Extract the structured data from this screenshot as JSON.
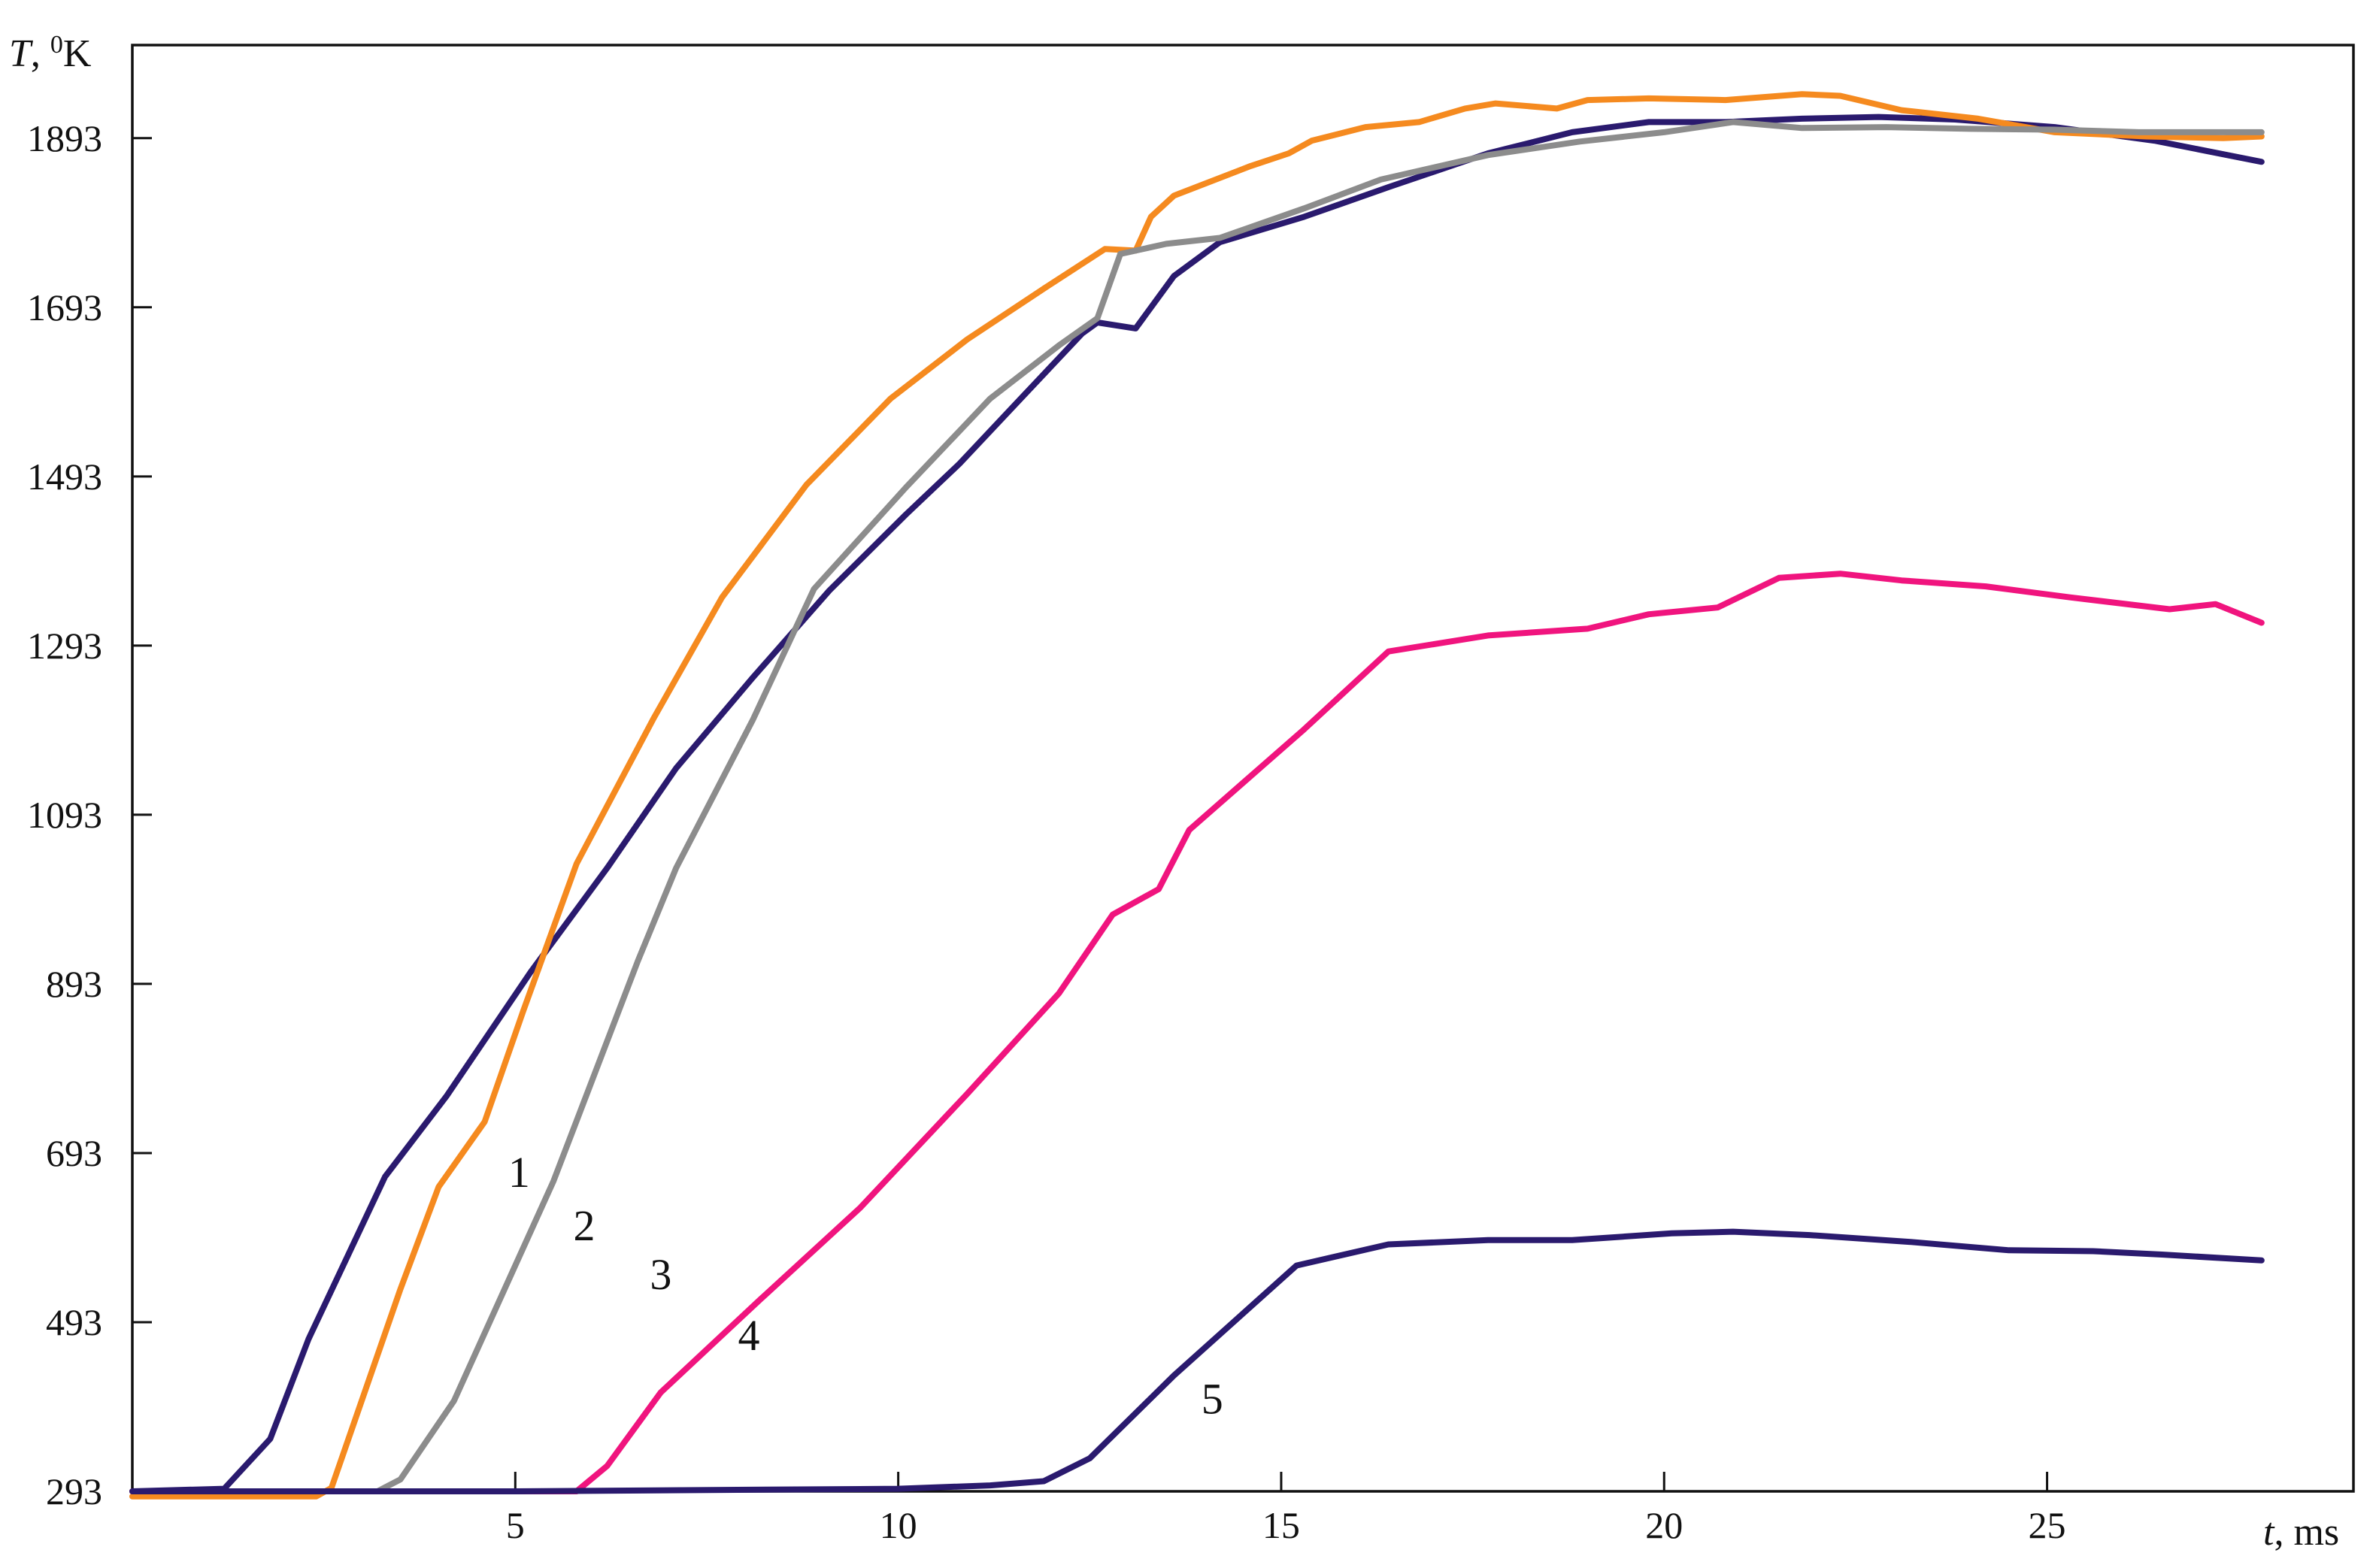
{
  "chart_data": {
    "type": "line",
    "ylabel": {
      "var": "T",
      "sep": ", ",
      "sup": "0",
      "unit": "K"
    },
    "xlabel": {
      "var": "t",
      "unit": ", ms"
    },
    "xlim": [
      0,
      29
    ],
    "ylim": [
      293,
      2003
    ],
    "x_ticks": [
      5,
      10,
      15,
      20,
      25
    ],
    "x_tick_labels": [
      "5",
      "10",
      "15",
      "20",
      "25"
    ],
    "y_ticks": [
      293,
      493,
      693,
      893,
      1093,
      1293,
      1493,
      1693,
      1893
    ],
    "y_tick_labels": [
      "293",
      "493",
      "693",
      "893",
      "1093",
      "1293",
      "1493",
      "1693",
      "1893"
    ],
    "grid": false,
    "legend": "none",
    "series": [
      {
        "label": "1",
        "color": "#2a1a6e",
        "points": [
          [
            0,
            293
          ],
          [
            1.2,
            296
          ],
          [
            1.8,
            355
          ],
          [
            2.3,
            473
          ],
          [
            3.3,
            665
          ],
          [
            4.1,
            760
          ],
          [
            5.2,
            907
          ],
          [
            6.2,
            1030
          ],
          [
            7.1,
            1148
          ],
          [
            8.1,
            1255
          ],
          [
            9.1,
            1358
          ],
          [
            10.1,
            1448
          ],
          [
            10.8,
            1508
          ],
          [
            11.6,
            1585
          ],
          [
            12.4,
            1662
          ],
          [
            12.6,
            1675
          ],
          [
            13.1,
            1668
          ],
          [
            13.6,
            1730
          ],
          [
            14.2,
            1770
          ],
          [
            15.3,
            1800
          ],
          [
            16.4,
            1835
          ],
          [
            17.7,
            1875
          ],
          [
            18.8,
            1900
          ],
          [
            19.8,
            1912
          ],
          [
            20.8,
            1912
          ],
          [
            21.8,
            1916
          ],
          [
            22.8,
            1918
          ],
          [
            23.8,
            1915
          ],
          [
            25.1,
            1906
          ],
          [
            26.4,
            1890
          ],
          [
            27.8,
            1865
          ]
        ]
      },
      {
        "label": "2",
        "color": "#f58a1f",
        "points": [
          [
            0,
            287
          ],
          [
            2.4,
            287
          ],
          [
            2.6,
            297
          ],
          [
            3.5,
            532
          ],
          [
            4.0,
            653
          ],
          [
            4.6,
            730
          ],
          [
            5.1,
            860
          ],
          [
            5.8,
            1035
          ],
          [
            6.8,
            1206
          ],
          [
            7.7,
            1350
          ],
          [
            8.8,
            1483
          ],
          [
            9.9,
            1585
          ],
          [
            10.9,
            1655
          ],
          [
            11.9,
            1715
          ],
          [
            12.7,
            1762
          ],
          [
            13.1,
            1760
          ],
          [
            13.3,
            1800
          ],
          [
            13.6,
            1825
          ],
          [
            14.6,
            1860
          ],
          [
            15.1,
            1875
          ],
          [
            15.4,
            1890
          ],
          [
            16.1,
            1906
          ],
          [
            16.8,
            1912
          ],
          [
            17.4,
            1928
          ],
          [
            17.8,
            1934
          ],
          [
            18.6,
            1928
          ],
          [
            19.0,
            1938
          ],
          [
            19.8,
            1940
          ],
          [
            20.8,
            1938
          ],
          [
            21.8,
            1945
          ],
          [
            22.3,
            1943
          ],
          [
            23.1,
            1926
          ],
          [
            24.1,
            1916
          ],
          [
            25.1,
            1900
          ],
          [
            26.3,
            1895
          ],
          [
            27.3,
            1893
          ],
          [
            27.8,
            1895
          ]
        ]
      },
      {
        "label": "3",
        "color": "#8c8c8c",
        "points": [
          [
            0,
            293
          ],
          [
            3.2,
            293
          ],
          [
            3.5,
            307
          ],
          [
            4.2,
            400
          ],
          [
            5.5,
            660
          ],
          [
            6.6,
            920
          ],
          [
            7.1,
            1030
          ],
          [
            8.1,
            1205
          ],
          [
            8.9,
            1360
          ],
          [
            10.1,
            1480
          ],
          [
            11.2,
            1585
          ],
          [
            12.1,
            1648
          ],
          [
            12.6,
            1680
          ],
          [
            12.9,
            1756
          ],
          [
            13.5,
            1768
          ],
          [
            14.2,
            1775
          ],
          [
            15.3,
            1810
          ],
          [
            16.3,
            1844
          ],
          [
            17.7,
            1873
          ],
          [
            18.9,
            1889
          ],
          [
            20.0,
            1900
          ],
          [
            20.9,
            1912
          ],
          [
            21.8,
            1905
          ],
          [
            22.9,
            1906
          ],
          [
            24.0,
            1904
          ],
          [
            25.1,
            1903
          ],
          [
            26.2,
            1900
          ],
          [
            27.8,
            1900
          ]
        ]
      },
      {
        "label": "4",
        "color": "#f0147e",
        "points": [
          [
            0,
            293
          ],
          [
            5.8,
            293
          ],
          [
            6.2,
            323
          ],
          [
            6.9,
            410
          ],
          [
            8.2,
            520
          ],
          [
            9.5,
            628
          ],
          [
            10.9,
            763
          ],
          [
            12.1,
            882
          ],
          [
            12.8,
            975
          ],
          [
            13.4,
            1005
          ],
          [
            13.8,
            1075
          ],
          [
            15.3,
            1194
          ],
          [
            16.4,
            1286
          ],
          [
            17.7,
            1305
          ],
          [
            19.0,
            1313
          ],
          [
            19.8,
            1330
          ],
          [
            20.7,
            1338
          ],
          [
            21.5,
            1373
          ],
          [
            22.3,
            1378
          ],
          [
            23.1,
            1370
          ],
          [
            24.2,
            1363
          ],
          [
            25.3,
            1350
          ],
          [
            26.6,
            1336
          ],
          [
            27.2,
            1342
          ],
          [
            27.8,
            1320
          ]
        ]
      },
      {
        "label": "5",
        "color": "#2a1a6e",
        "points": [
          [
            0,
            293
          ],
          [
            5.0,
            293
          ],
          [
            10.0,
            296
          ],
          [
            11.2,
            300
          ],
          [
            11.9,
            305
          ],
          [
            12.5,
            332
          ],
          [
            13.6,
            430
          ],
          [
            15.2,
            560
          ],
          [
            16.4,
            585
          ],
          [
            17.7,
            590
          ],
          [
            18.8,
            590
          ],
          [
            20.1,
            598
          ],
          [
            20.9,
            600
          ],
          [
            21.9,
            596
          ],
          [
            23.2,
            588
          ],
          [
            24.5,
            578
          ],
          [
            25.6,
            577
          ],
          [
            26.5,
            573
          ],
          [
            27.8,
            566
          ]
        ]
      }
    ],
    "curve_labels": [
      {
        "text": "1",
        "x": 5.05,
        "y": 653
      },
      {
        "text": "2",
        "x": 5.9,
        "y": 590
      },
      {
        "text": "3",
        "x": 6.9,
        "y": 532
      },
      {
        "text": "4",
        "x": 8.05,
        "y": 460
      },
      {
        "text": "5",
        "x": 14.1,
        "y": 385
      }
    ]
  }
}
